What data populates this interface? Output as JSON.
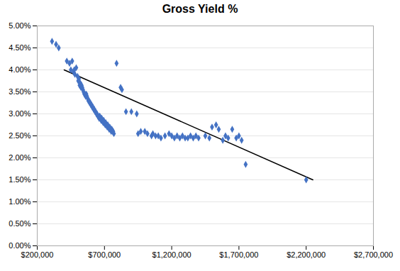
{
  "chart_data": {
    "type": "scatter",
    "title": "Gross Yield %",
    "xlim": [
      200000,
      2700000
    ],
    "ylim": [
      0.0,
      0.05
    ],
    "xticks": [
      {
        "value": 200000,
        "label": "$200,000"
      },
      {
        "value": 700000,
        "label": "$700,000"
      },
      {
        "value": 1200000,
        "label": "$1,200,000"
      },
      {
        "value": 1700000,
        "label": "$1,700,000"
      },
      {
        "value": 2200000,
        "label": "$2,200,000"
      },
      {
        "value": 2700000,
        "label": "$2,700,000"
      }
    ],
    "yticks": [
      {
        "value": 0.0,
        "label": "0.00%"
      },
      {
        "value": 0.005,
        "label": "0.50%"
      },
      {
        "value": 0.01,
        "label": "1.00%"
      },
      {
        "value": 0.015,
        "label": "1.50%"
      },
      {
        "value": 0.02,
        "label": "2.00%"
      },
      {
        "value": 0.025,
        "label": "2.50%"
      },
      {
        "value": 0.03,
        "label": "3.00%"
      },
      {
        "value": 0.035,
        "label": "3.50%"
      },
      {
        "value": 0.04,
        "label": "4.00%"
      },
      {
        "value": 0.045,
        "label": "4.50%"
      },
      {
        "value": 0.05,
        "label": "5.00%"
      }
    ],
    "grid": "y",
    "series": [
      {
        "type": "scatter",
        "marker": "diamond",
        "color": "#4472C4",
        "x": [
          310000,
          340000,
          360000,
          420000,
          440000,
          450000,
          460000,
          470000,
          475000,
          480000,
          490000,
          500000,
          505000,
          510000,
          515000,
          520000,
          525000,
          530000,
          535000,
          540000,
          545000,
          550000,
          555000,
          560000,
          565000,
          570000,
          575000,
          580000,
          585000,
          590000,
          595000,
          600000,
          605000,
          610000,
          615000,
          620000,
          625000,
          630000,
          635000,
          640000,
          645000,
          650000,
          655000,
          660000,
          665000,
          670000,
          675000,
          680000,
          685000,
          690000,
          695000,
          700000,
          705000,
          710000,
          715000,
          720000,
          725000,
          730000,
          735000,
          740000,
          745000,
          750000,
          755000,
          760000,
          765000,
          770000,
          790000,
          820000,
          830000,
          860000,
          900000,
          940000,
          950000,
          970000,
          1000000,
          1020000,
          1050000,
          1060000,
          1080000,
          1100000,
          1120000,
          1150000,
          1180000,
          1200000,
          1220000,
          1240000,
          1260000,
          1280000,
          1300000,
          1320000,
          1340000,
          1360000,
          1380000,
          1400000,
          1450000,
          1480000,
          1500000,
          1530000,
          1550000,
          1580000,
          1600000,
          1620000,
          1650000,
          1680000,
          1700000,
          1720000,
          1750000,
          2200000
        ],
        "values": [
          0.0465,
          0.0458,
          0.045,
          0.042,
          0.0415,
          0.04,
          0.042,
          0.0395,
          0.04,
          0.039,
          0.0405,
          0.0385,
          0.0375,
          0.038,
          0.0365,
          0.037,
          0.036,
          0.0365,
          0.036,
          0.0355,
          0.035,
          0.0345,
          0.0345,
          0.034,
          0.0345,
          0.034,
          0.0335,
          0.033,
          0.033,
          0.0325,
          0.0325,
          0.032,
          0.032,
          0.0315,
          0.0315,
          0.031,
          0.031,
          0.0305,
          0.0305,
          0.03,
          0.03,
          0.0295,
          0.0295,
          0.029,
          0.0295,
          0.029,
          0.0285,
          0.029,
          0.0285,
          0.028,
          0.0285,
          0.028,
          0.0275,
          0.028,
          0.0275,
          0.027,
          0.0275,
          0.027,
          0.0265,
          0.027,
          0.0265,
          0.026,
          0.0265,
          0.026,
          0.026,
          0.0255,
          0.0415,
          0.036,
          0.0355,
          0.0305,
          0.0305,
          0.03,
          0.0255,
          0.026,
          0.026,
          0.0255,
          0.025,
          0.0255,
          0.025,
          0.025,
          0.0245,
          0.025,
          0.0255,
          0.025,
          0.0245,
          0.025,
          0.0245,
          0.025,
          0.0245,
          0.0245,
          0.025,
          0.0245,
          0.025,
          0.0245,
          0.025,
          0.0245,
          0.027,
          0.0275,
          0.0265,
          0.024,
          0.025,
          0.0245,
          0.0265,
          0.0245,
          0.025,
          0.024,
          0.0185,
          0.015
        ]
      },
      {
        "type": "line",
        "color": "#000000",
        "x": [
          400000,
          2250000
        ],
        "values": [
          0.04,
          0.015
        ]
      }
    ]
  }
}
